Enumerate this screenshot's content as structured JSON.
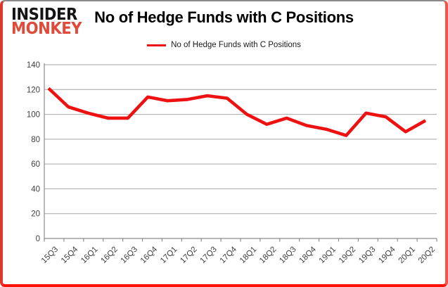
{
  "logo": {
    "line1": "INSIDER",
    "line2": "MONKEY"
  },
  "header": {
    "title": "No of Hedge Funds with C Positions"
  },
  "legend": {
    "label": "No of Hedge Funds with C Positions"
  },
  "colors": {
    "series_line": "#ee1111",
    "logo_black": "#141414",
    "logo_red": "#df4a3a",
    "frame_red": "#fa1408",
    "gridline": "#a6a6a6",
    "axis": "#8c8c8c",
    "tick_label": "#404040"
  },
  "chart_data": {
    "type": "line",
    "title": "No of Hedge Funds with C Positions",
    "categories": [
      "15Q3",
      "15Q4",
      "16Q1",
      "16Q2",
      "16Q3",
      "16Q4",
      "17Q1",
      "17Q2",
      "17Q3",
      "17Q4",
      "18Q1",
      "18Q2",
      "18Q3",
      "18Q4",
      "19Q1",
      "19Q2",
      "19Q3",
      "19Q4",
      "20Q1",
      "20Q2"
    ],
    "series": [
      {
        "name": "No of Hedge Funds with C Positions",
        "values": [
          121,
          106,
          101,
          97,
          97,
          114,
          111,
          112,
          115,
          113,
          100,
          92,
          97,
          91,
          88,
          83,
          101,
          98,
          86,
          95
        ]
      }
    ],
    "xlabel": "",
    "ylabel": "",
    "ylim": [
      0,
      140
    ],
    "ytick_step": 20,
    "grid": "horizontal",
    "legend_position": "top-center",
    "line_color": "#ee1111"
  }
}
